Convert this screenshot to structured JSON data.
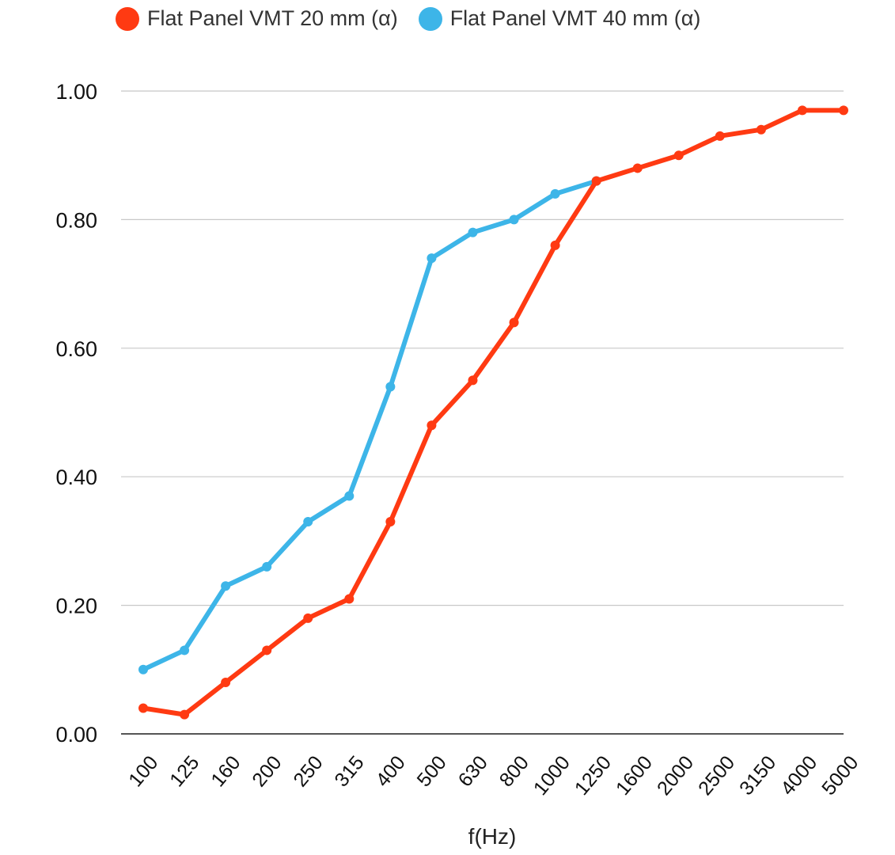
{
  "chart_data": {
    "type": "line",
    "title": "",
    "xlabel": "f(Hz)",
    "ylabel": "",
    "ylim": [
      0,
      1
    ],
    "yticks": [
      "0.00",
      "0.20",
      "0.40",
      "0.60",
      "0.80",
      "1.00"
    ],
    "ytick_values": [
      0,
      0.2,
      0.4,
      0.6,
      0.8,
      1.0
    ],
    "grid": true,
    "legend_position": "top",
    "categories": [
      "100",
      "125",
      "160",
      "200",
      "250",
      "315",
      "400",
      "500",
      "630",
      "800",
      "1000",
      "1250",
      "1600",
      "2000",
      "2500",
      "3150",
      "4000",
      "5000"
    ],
    "series": [
      {
        "name": "Flat Panel VMT 20 mm (α)",
        "color": "#ff3a12",
        "values": [
          0.04,
          0.03,
          0.08,
          0.13,
          0.18,
          0.21,
          0.33,
          0.48,
          0.55,
          0.64,
          0.76,
          0.86,
          0.88,
          0.9,
          0.93,
          0.94,
          0.97,
          0.97
        ]
      },
      {
        "name": "Flat Panel VMT 40 mm (α)",
        "color": "#3db5e8",
        "values": [
          0.1,
          0.13,
          0.23,
          0.26,
          0.33,
          0.37,
          0.54,
          0.74,
          0.78,
          0.8,
          0.84,
          0.86,
          null,
          null,
          null,
          null,
          null,
          null
        ]
      }
    ]
  }
}
